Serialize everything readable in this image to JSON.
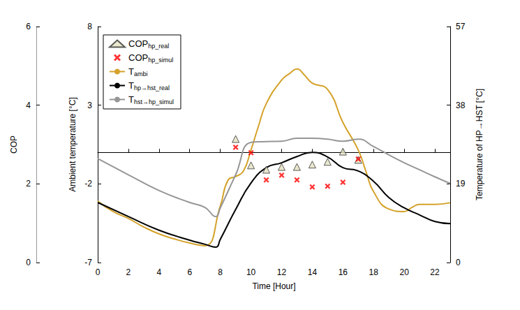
{
  "chart_data": {
    "type": "line",
    "xlabel": "Time [Hour]",
    "ylabel": "Ambient temperature [°C]",
    "y2label": "Temperature of HP→HST [°C]",
    "y3label": "COP",
    "xlim": [
      0,
      23
    ],
    "xticks": [
      0,
      2,
      4,
      6,
      8,
      10,
      12,
      14,
      16,
      18,
      20,
      22
    ],
    "ylim": [
      -7,
      8
    ],
    "yticks": [
      -7,
      -2,
      3,
      8
    ],
    "y2lim": [
      0,
      57
    ],
    "y2ticks": [
      0,
      19,
      38,
      57
    ],
    "y3lim": [
      0,
      6
    ],
    "y3ticks": [
      0,
      2,
      4,
      6
    ],
    "grid": false,
    "legend": "upper left",
    "series": [
      {
        "name": "COPhp_real",
        "type": "scatter",
        "marker": "triangle",
        "color": "#e3e1c0",
        "axis": "y3",
        "x": [
          9,
          10,
          11,
          12,
          13,
          14,
          15,
          16,
          17
        ],
        "values": [
          3.14,
          2.47,
          2.36,
          2.43,
          2.43,
          2.49,
          2.56,
          2.82,
          2.61
        ]
      },
      {
        "name": "COPhp_simul",
        "type": "scatter",
        "marker": "x",
        "color": "#ff0000",
        "axis": "y3",
        "x": [
          9,
          10,
          11,
          12,
          13,
          14,
          15,
          16,
          17
        ],
        "values": [
          2.93,
          2.79,
          2.1,
          2.22,
          2.1,
          1.92,
          1.94,
          2.04,
          2.63
        ]
      },
      {
        "name": "Tambi",
        "type": "line",
        "line_style": "solid",
        "color": "#d4a22a",
        "axis": "y",
        "x": [
          0,
          1,
          2,
          3,
          4,
          5,
          6,
          7,
          8,
          8.5,
          9,
          9.5,
          10,
          10.5,
          11,
          12,
          12.5,
          13,
          13.5,
          14,
          15,
          16,
          17,
          17.5,
          18,
          19,
          20,
          20.5,
          21,
          22,
          23
        ],
        "values": [
          -3.1,
          -3.76,
          -4.2,
          -4.74,
          -5.18,
          -5.5,
          -5.76,
          -5.93,
          -3.4,
          -1.76,
          -1.54,
          -1.2,
          0.15,
          1.7,
          3.1,
          4.6,
          5.0,
          5.3,
          4.9,
          4.4,
          4.0,
          1.9,
          0.15,
          -1.2,
          -2.5,
          -3.6,
          -3.76,
          -3.5,
          -3.3,
          -3.3,
          -3.2
        ]
      },
      {
        "name": "Thp→hst_real",
        "type": "line",
        "line_style": "solid",
        "color": "#000000",
        "axis": "y2",
        "x": [
          0,
          2,
          4,
          6,
          7,
          7.7,
          8,
          9,
          10,
          11,
          12,
          13,
          14,
          15,
          16,
          17,
          18,
          19,
          20,
          21,
          22,
          23
        ],
        "values": [
          14.5,
          11.1,
          7.8,
          5.4,
          4.4,
          3.7,
          5.6,
          12.8,
          19.2,
          22.9,
          24.1,
          25.6,
          26.6,
          25.5,
          22.9,
          22.1,
          19.6,
          15.7,
          13.2,
          11.5,
          9.9,
          9.4
        ]
      },
      {
        "name": "Thst→hp_simul",
        "type": "line",
        "line_style": "solid",
        "color": "#969696",
        "axis": "y2",
        "x": [
          0,
          2,
          4,
          6,
          7,
          7.7,
          8,
          9,
          10,
          11,
          12,
          13,
          14,
          15,
          16,
          17,
          18,
          19,
          20,
          21,
          22,
          23
        ],
        "values": [
          25.1,
          21.2,
          17.4,
          14.5,
          13.3,
          11.1,
          13.2,
          21.2,
          29.0,
          29.2,
          29.3,
          30.0,
          30.0,
          29.8,
          29.3,
          29.8,
          28.0,
          26.0,
          24.1,
          22.4,
          20.7,
          19.1
        ]
      }
    ]
  }
}
